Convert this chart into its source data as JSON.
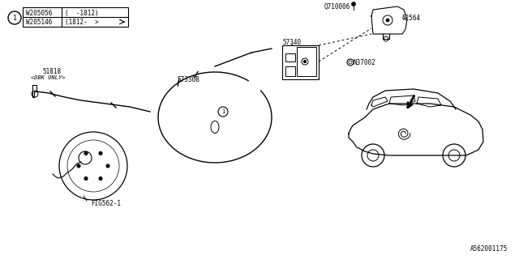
{
  "title": "",
  "background_color": "#ffffff",
  "border_color": "#000000",
  "line_color": "#000000",
  "diagram_id": "A562001175",
  "part_numbers": {
    "W205056": "( -1812)",
    "W205146": "(1812- >)",
    "Q710006": "",
    "52564": "",
    "57340": "",
    "N37002": "",
    "57330B": "",
    "51818": "",
    "51818_note": "<DBK ONLY>",
    "FIG562_1": "FIG562-1"
  },
  "circle_marker": 1
}
